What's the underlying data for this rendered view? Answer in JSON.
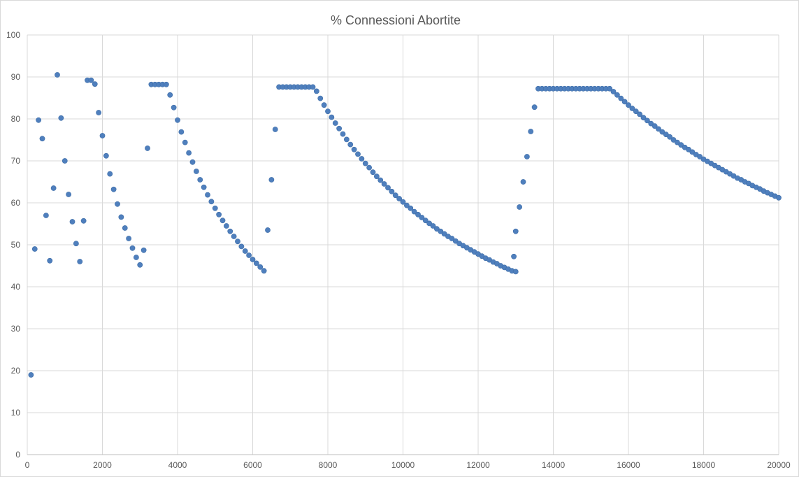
{
  "chart_data": {
    "type": "scatter",
    "title": "% Connessioni Abortite",
    "xlabel": "",
    "ylabel": "",
    "xlim": [
      0,
      20000
    ],
    "ylim": [
      0,
      100
    ],
    "x_ticks": [
      0,
      2000,
      4000,
      6000,
      8000,
      10000,
      12000,
      14000,
      16000,
      18000,
      20000
    ],
    "y_ticks": [
      0,
      10,
      20,
      30,
      40,
      50,
      60,
      70,
      80,
      90,
      100
    ],
    "grid": true,
    "legend": "none",
    "color": "#4f7fbd",
    "series": [
      {
        "points": [
          [
            100,
            19
          ],
          [
            200,
            49
          ],
          [
            300,
            79.7
          ],
          [
            400,
            75.3
          ],
          [
            500,
            57
          ],
          [
            600,
            46.2
          ],
          [
            700,
            63.5
          ],
          [
            800,
            90.5
          ],
          [
            900,
            80.2
          ],
          [
            1000,
            70
          ],
          [
            1100,
            62
          ],
          [
            1200,
            55.5
          ],
          [
            1300,
            50.3
          ],
          [
            1400,
            46
          ],
          [
            1500,
            55.7
          ],
          [
            1600,
            89.2
          ],
          [
            1700,
            89.2
          ],
          [
            1800,
            88.3
          ],
          [
            1900,
            81.5
          ],
          [
            2000,
            76
          ],
          [
            2100,
            71.2
          ],
          [
            2200,
            66.9
          ],
          [
            2300,
            63.2
          ],
          [
            2400,
            59.7
          ],
          [
            2500,
            56.6
          ],
          [
            2600,
            54
          ],
          [
            2700,
            51.5
          ],
          [
            2800,
            49.2
          ],
          [
            2900,
            47
          ],
          [
            3000,
            45.2
          ],
          [
            3100,
            48.7
          ],
          [
            3200,
            73
          ],
          [
            3300,
            88.2
          ],
          [
            3400,
            88.2
          ],
          [
            3500,
            88.2
          ],
          [
            3600,
            88.2
          ],
          [
            3700,
            88.2
          ],
          [
            3800,
            85.7
          ],
          [
            3900,
            82.7
          ],
          [
            4000,
            79.7
          ],
          [
            4100,
            76.9
          ],
          [
            4200,
            74.4
          ],
          [
            4300,
            71.9
          ],
          [
            4400,
            69.7
          ],
          [
            4500,
            67.5
          ],
          [
            4600,
            65.5
          ],
          [
            4700,
            63.7
          ],
          [
            4800,
            61.9
          ],
          [
            4900,
            60.3
          ],
          [
            5000,
            58.7
          ],
          [
            5100,
            57.2
          ],
          [
            5200,
            55.8
          ],
          [
            5300,
            54.5
          ],
          [
            5400,
            53.2
          ],
          [
            5500,
            52
          ],
          [
            5600,
            50.8
          ],
          [
            5700,
            49.6
          ],
          [
            5800,
            48.5
          ],
          [
            5900,
            47.5
          ],
          [
            6000,
            46.5
          ],
          [
            6100,
            45.6
          ],
          [
            6200,
            44.7
          ],
          [
            6300,
            43.8
          ],
          [
            6400,
            53.5
          ],
          [
            6500,
            65.5
          ],
          [
            6600,
            77.5
          ],
          [
            6700,
            87.6
          ],
          [
            6800,
            87.6
          ],
          [
            6900,
            87.6
          ],
          [
            7000,
            87.6
          ],
          [
            7100,
            87.6
          ],
          [
            7200,
            87.6
          ],
          [
            7300,
            87.6
          ],
          [
            7400,
            87.6
          ],
          [
            7500,
            87.6
          ],
          [
            7600,
            87.6
          ],
          [
            7700,
            86.6
          ],
          [
            7800,
            84.9
          ],
          [
            7900,
            83.3
          ],
          [
            8000,
            81.8
          ],
          [
            8100,
            80.4
          ],
          [
            8200,
            79
          ],
          [
            8300,
            77.7
          ],
          [
            8400,
            76.4
          ],
          [
            8500,
            75.1
          ],
          [
            8600,
            73.9
          ],
          [
            8700,
            72.7
          ],
          [
            8800,
            71.6
          ],
          [
            8900,
            70.5
          ],
          [
            9000,
            69.4
          ],
          [
            9100,
            68.4
          ],
          [
            9200,
            67.3
          ],
          [
            9300,
            66.3
          ],
          [
            9400,
            65.4
          ],
          [
            9500,
            64.5
          ],
          [
            9600,
            63.6
          ],
          [
            9700,
            62.7
          ],
          [
            9800,
            61.8
          ],
          [
            9900,
            61
          ],
          [
            10000,
            60.2
          ],
          [
            10100,
            59.4
          ],
          [
            10200,
            58.7
          ],
          [
            10300,
            57.9
          ],
          [
            10400,
            57.2
          ],
          [
            10500,
            56.5
          ],
          [
            10600,
            55.8
          ],
          [
            10700,
            55.1
          ],
          [
            10800,
            54.5
          ],
          [
            10900,
            53.8
          ],
          [
            11000,
            53.2
          ],
          [
            11100,
            52.6
          ],
          [
            11200,
            52
          ],
          [
            11300,
            51.5
          ],
          [
            11400,
            50.9
          ],
          [
            11500,
            50.3
          ],
          [
            11600,
            49.8
          ],
          [
            11700,
            49.3
          ],
          [
            11800,
            48.8
          ],
          [
            11900,
            48.3
          ],
          [
            12000,
            47.8
          ],
          [
            12100,
            47.3
          ],
          [
            12200,
            46.8
          ],
          [
            12300,
            46.4
          ],
          [
            12400,
            45.9
          ],
          [
            12500,
            45.5
          ],
          [
            12600,
            45
          ],
          [
            12700,
            44.6
          ],
          [
            12800,
            44.2
          ],
          [
            12900,
            43.8
          ],
          [
            13000,
            43.6
          ],
          [
            12950,
            47.2
          ],
          [
            13000,
            53.2
          ],
          [
            13100,
            59
          ],
          [
            13200,
            65
          ],
          [
            13300,
            71
          ],
          [
            13400,
            77
          ],
          [
            13500,
            82.8
          ],
          [
            13600,
            87.2
          ],
          [
            13700,
            87.2
          ],
          [
            13800,
            87.2
          ],
          [
            13900,
            87.2
          ],
          [
            14000,
            87.2
          ],
          [
            14100,
            87.2
          ],
          [
            14200,
            87.2
          ],
          [
            14300,
            87.2
          ],
          [
            14400,
            87.2
          ],
          [
            14500,
            87.2
          ],
          [
            14600,
            87.2
          ],
          [
            14700,
            87.2
          ],
          [
            14800,
            87.2
          ],
          [
            14900,
            87.2
          ],
          [
            15000,
            87.2
          ],
          [
            15100,
            87.2
          ],
          [
            15200,
            87.2
          ],
          [
            15300,
            87.2
          ],
          [
            15400,
            87.2
          ],
          [
            15500,
            87.2
          ],
          [
            15600,
            86.5
          ],
          [
            15700,
            85.7
          ],
          [
            15800,
            84.9
          ],
          [
            15900,
            84.1
          ],
          [
            16000,
            83.3
          ],
          [
            16100,
            82.5
          ],
          [
            16200,
            81.8
          ],
          [
            16300,
            81.1
          ],
          [
            16400,
            80.3
          ],
          [
            16500,
            79.6
          ],
          [
            16600,
            78.9
          ],
          [
            16700,
            78.3
          ],
          [
            16800,
            77.6
          ],
          [
            16900,
            76.9
          ],
          [
            17000,
            76.3
          ],
          [
            17100,
            75.7
          ],
          [
            17200,
            75
          ],
          [
            17300,
            74.4
          ],
          [
            17400,
            73.8
          ],
          [
            17500,
            73.2
          ],
          [
            17600,
            72.7
          ],
          [
            17700,
            72.1
          ],
          [
            17800,
            71.5
          ],
          [
            17900,
            71
          ],
          [
            18000,
            70.4
          ],
          [
            18100,
            69.9
          ],
          [
            18200,
            69.4
          ],
          [
            18300,
            68.9
          ],
          [
            18400,
            68.4
          ],
          [
            18500,
            67.9
          ],
          [
            18600,
            67.4
          ],
          [
            18700,
            66.9
          ],
          [
            18800,
            66.4
          ],
          [
            18900,
            65.9
          ],
          [
            19000,
            65.5
          ],
          [
            19100,
            65
          ],
          [
            19200,
            64.6
          ],
          [
            19300,
            64.1
          ],
          [
            19400,
            63.7
          ],
          [
            19500,
            63.3
          ],
          [
            19600,
            62.8
          ],
          [
            19700,
            62.4
          ],
          [
            19800,
            62
          ],
          [
            19900,
            61.6
          ],
          [
            20000,
            61.2
          ]
        ]
      }
    ]
  }
}
